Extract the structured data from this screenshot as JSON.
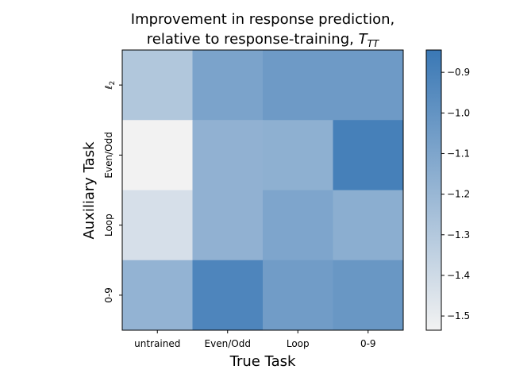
{
  "chart_data": {
    "type": "heatmap",
    "title_line1": "Improvement in response prediction,",
    "title_line2_prefix": "relative to response-training, ",
    "title_line2_symbol": "T",
    "title_line2_subscript": "TT",
    "xlabel": "True Task",
    "ylabel": "Auxiliary Task",
    "x_categories": [
      "untrained",
      "Even/Odd",
      "Loop",
      "0-9"
    ],
    "y_categories": [
      "ℓ",
      "Even/Odd",
      "Loop",
      "0-9"
    ],
    "y_first_label_subscript": "2",
    "values": [
      [
        -1.29,
        -1.09,
        -1.04,
        -1.04
      ],
      [
        -1.54,
        -1.17,
        -1.16,
        -0.89
      ],
      [
        -1.43,
        -1.17,
        -1.1,
        -1.15
      ],
      [
        -1.18,
        -0.92,
        -1.05,
        -1.02
      ]
    ],
    "colorbar": {
      "vmin": -1.535,
      "vmax": -0.845,
      "ticks": [
        -1.5,
        -1.4,
        -1.3,
        -1.2,
        -1.1,
        -1.0,
        -0.9
      ],
      "tick_labels": [
        "−1.5",
        "−1.4",
        "−1.3",
        "−1.2",
        "−1.1",
        "−1.0",
        "−0.9"
      ],
      "color_low": "#f2f2f2",
      "color_high": "#3a78b5"
    },
    "grid": false
  }
}
